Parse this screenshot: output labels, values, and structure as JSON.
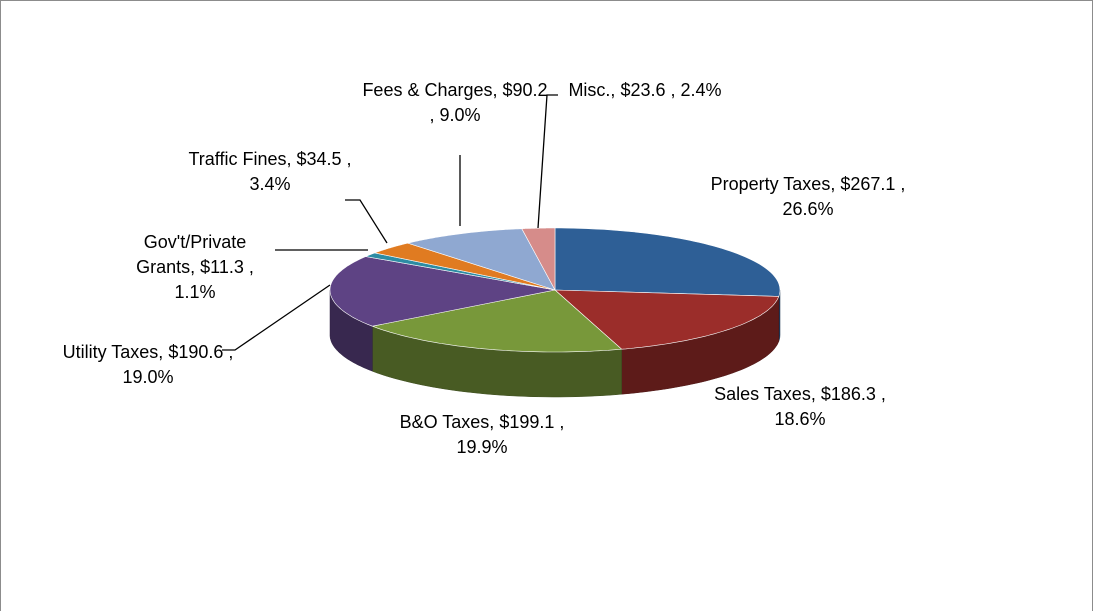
{
  "chart_data": {
    "type": "pie",
    "categories": [
      "Property Taxes,",
      "Sales Taxes,",
      "B&O Taxes,",
      "Utility Taxes,",
      "Gov't/Private Grants,",
      "Traffic Fines,",
      "Fees & Charges,",
      "Misc.,"
    ],
    "values": [
      267.1,
      186.3,
      199.1,
      190.6,
      11.3,
      34.5,
      90.2,
      23.6
    ],
    "value_labels": [
      "$267.1 ,",
      "$186.3 ,",
      "$199.1 ,",
      "$190.6 ,",
      "$11.3 ,",
      "$34.5 ,",
      "$90.2 ,",
      "$23.6 ,"
    ],
    "percents": [
      26.6,
      18.6,
      19.9,
      19.0,
      1.1,
      3.4,
      9.0,
      2.4
    ],
    "percent_labels": [
      "26.6%",
      "18.6%",
      "19.9%",
      "19.0%",
      "1.1%",
      "3.4%",
      "9.0%",
      "2.4%"
    ],
    "colors": [
      "#2e5f96",
      "#9b2d2a",
      "#78983a",
      "#5e4384",
      "#2d8ca3",
      "#e07b21",
      "#8fa8d1",
      "#d68c8a"
    ]
  }
}
